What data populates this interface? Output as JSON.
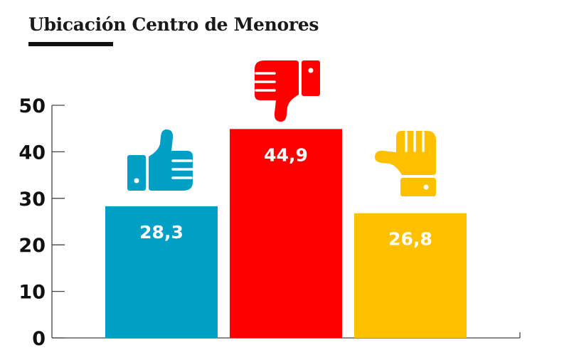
{
  "chart_data": {
    "type": "bar",
    "title": "Ubicación Centro de Menores",
    "categories": [
      "",
      "",
      ""
    ],
    "values": [
      28.3,
      44.9,
      26.8
    ],
    "value_labels": [
      "28,3",
      "44,9",
      "26,8"
    ],
    "icons": [
      "thumbs-up-icon",
      "thumbs-down-icon",
      "thumbs-sideways-icon"
    ],
    "colors": [
      "#00a0c6",
      "#ff0000",
      "#ffc000"
    ],
    "ylim": [
      0,
      50
    ],
    "yticks": [
      0,
      10,
      20,
      30,
      40,
      50
    ],
    "ytick_labels": [
      "0",
      "10",
      "20",
      "30",
      "40",
      "50"
    ],
    "xlabel": "",
    "ylabel": "",
    "grid": false,
    "legend": "none"
  }
}
